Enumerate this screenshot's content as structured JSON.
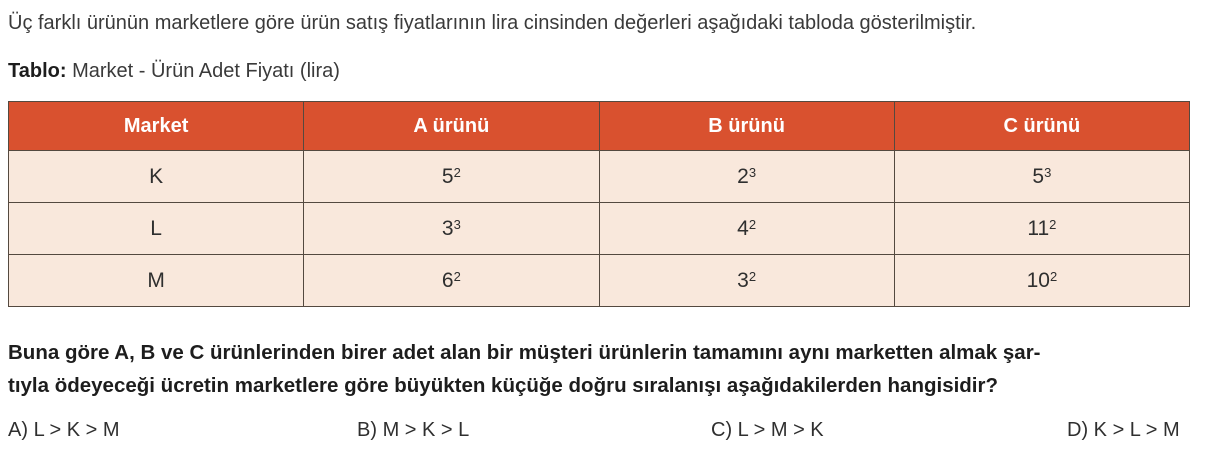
{
  "intro": "Üç farklı ürünün marketlere göre ürün satış fiyatlarının lira cinsinden değerleri aşağıdaki tabloda gösterilmiştir.",
  "caption": {
    "label": "Tablo:",
    "text": " Market - Ürün Adet Fiyatı (lira)"
  },
  "table": {
    "headers": [
      "Market",
      "A ürünü",
      "B ürünü",
      "C ürünü"
    ],
    "rows": [
      {
        "market": "K",
        "prices": [
          {
            "base": "5",
            "exp": "2"
          },
          {
            "base": "2",
            "exp": "3"
          },
          {
            "base": "5",
            "exp": "3"
          }
        ]
      },
      {
        "market": "L",
        "prices": [
          {
            "base": "3",
            "exp": "3"
          },
          {
            "base": "4",
            "exp": "2"
          },
          {
            "base": "11",
            "exp": "2"
          }
        ]
      },
      {
        "market": "M",
        "prices": [
          {
            "base": "6",
            "exp": "2"
          },
          {
            "base": "3",
            "exp": "2"
          },
          {
            "base": "10",
            "exp": "2"
          }
        ]
      }
    ]
  },
  "question_lines": [
    "Buna göre A, B ve C ürünlerinden birer adet alan bir müşteri ürünlerin tamamını aynı marketten almak şar-",
    "tıyla ödeyeceği ücretin marketlere göre büyükten küçüğe doğru sıralanışı aşağıdakilerden hangisidir?"
  ],
  "options": [
    {
      "label": "A)",
      "text": "L > K > M"
    },
    {
      "label": "B)",
      "text": "M > K > L"
    },
    {
      "label": "C)",
      "text": "L > M > K"
    },
    {
      "label": "D)",
      "text": "K > L > M"
    }
  ],
  "colors": {
    "header_bg": "#d9512f",
    "header_text": "#ffffff",
    "row_bg": "#f9e8dc",
    "border": "#54493f"
  }
}
